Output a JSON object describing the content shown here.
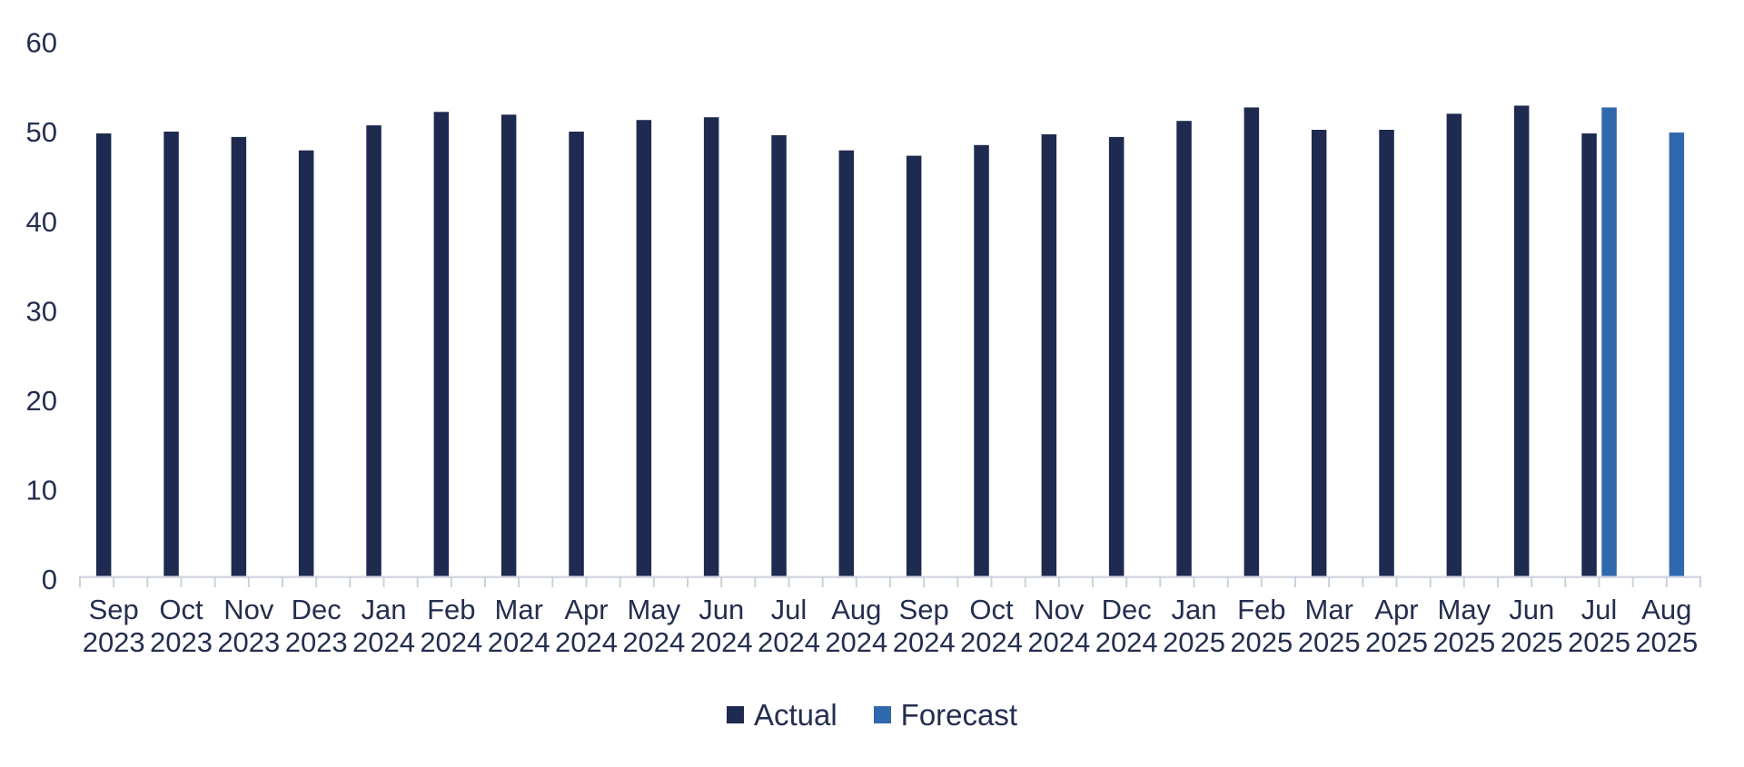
{
  "chart_data": {
    "type": "bar",
    "title": "",
    "xlabel": "",
    "ylabel": "",
    "categories": [
      "Sep 2023",
      "Oct 2023",
      "Nov 2023",
      "Dec 2023",
      "Jan 2024",
      "Feb 2024",
      "Mar 2024",
      "Apr 2024",
      "May 2024",
      "Jun 2024",
      "Jul 2024",
      "Aug 2024",
      "Sep 2024",
      "Oct 2024",
      "Nov 2024",
      "Dec 2024",
      "Jan 2025",
      "Feb 2025",
      "Mar 2025",
      "Apr 2025",
      "May 2025",
      "Jun 2025",
      "Jul 2025",
      "Aug 2025"
    ],
    "series": [
      {
        "name": "Actual",
        "color": "#1e2a4f",
        "values": [
          49.8,
          50.0,
          49.4,
          47.9,
          50.7,
          52.2,
          51.9,
          50.0,
          51.3,
          51.6,
          49.6,
          47.9,
          47.3,
          48.5,
          49.7,
          49.4,
          51.2,
          52.7,
          50.2,
          50.2,
          52.0,
          52.9,
          49.8,
          null
        ]
      },
      {
        "name": "Forecast",
        "color": "#2f68ad",
        "values": [
          null,
          null,
          null,
          null,
          null,
          null,
          null,
          null,
          null,
          null,
          null,
          null,
          null,
          null,
          null,
          null,
          null,
          null,
          null,
          null,
          null,
          null,
          52.7,
          49.9
        ]
      }
    ],
    "ylim": [
      0,
      60
    ],
    "yticks": [
      0,
      10,
      20,
      30,
      40,
      50,
      60
    ],
    "grid": false,
    "legend_position": "bottom",
    "colors": {
      "axis_line": "#d5d8e4",
      "tick_mark": "#ccd1df",
      "text": "#242e4f",
      "background": "#ffffff"
    }
  }
}
